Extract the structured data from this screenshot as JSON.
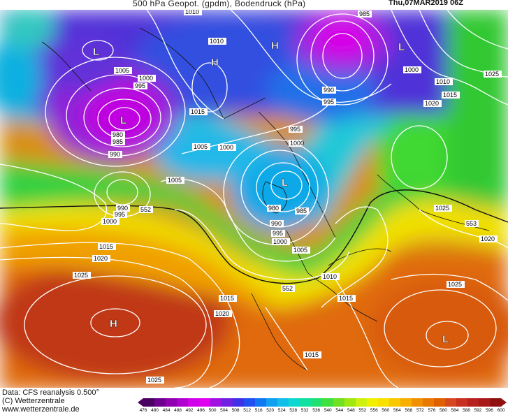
{
  "header": {
    "title": "500 hPa Geopot. (gpdm), Bodendruck (hPa)",
    "date": "Thu,07MAR2019 06Z"
  },
  "footer": {
    "line1": "Data: CFS reanalysis 0.500°",
    "line2": "(C) Wetterzentrale",
    "line3": "www.wetterzentrale.de"
  },
  "legend": {
    "values": [
      "476",
      "480",
      "484",
      "488",
      "492",
      "496",
      "500",
      "504",
      "508",
      "512",
      "516",
      "520",
      "524",
      "528",
      "532",
      "536",
      "540",
      "544",
      "548",
      "552",
      "556",
      "560",
      "564",
      "568",
      "572",
      "576",
      "580",
      "584",
      "588",
      "592",
      "596",
      "600"
    ],
    "colors": [
      "#4a0060",
      "#6e0090",
      "#9000b0",
      "#b000d0",
      "#d000e8",
      "#e000f0",
      "#a010e0",
      "#7020e0",
      "#4030e8",
      "#2050f0",
      "#1078f0",
      "#10a0f0",
      "#10c0e8",
      "#10d8d0",
      "#10e0a0",
      "#20e070",
      "#40e040",
      "#70e020",
      "#a0e810",
      "#d0f010",
      "#f0f000",
      "#f8e000",
      "#f8c800",
      "#f8b000",
      "#f09000",
      "#e87800",
      "#e06000",
      "#d84820",
      "#c83020",
      "#b82020",
      "#a81818",
      "#901010"
    ]
  },
  "map": {
    "pressure_systems": [
      {
        "symbol": "L"
      },
      {
        "symbol": "L"
      },
      {
        "symbol": "H"
      },
      {
        "symbol": "H"
      },
      {
        "symbol": "L"
      },
      {
        "symbol": "L"
      },
      {
        "symbol": "H"
      },
      {
        "symbol": "L"
      }
    ],
    "isobar_labels": [
      "1010",
      "985",
      "1010",
      "1005",
      "1000",
      "995",
      "1025",
      "1010",
      "1015",
      "1000",
      "1020",
      "1015",
      "990",
      "995",
      "995",
      "1005",
      "1000",
      "980",
      "985",
      "990",
      "1000",
      "1005",
      "1025",
      "553",
      "552",
      "1000",
      "995",
      "990",
      "980",
      "985",
      "990",
      "995",
      "1000",
      "1005",
      "1015",
      "1020",
      "1025",
      "1010",
      "1015",
      "1020",
      "1015",
      "552",
      "1025",
      "1025",
      "1020",
      "1015"
    ]
  }
}
